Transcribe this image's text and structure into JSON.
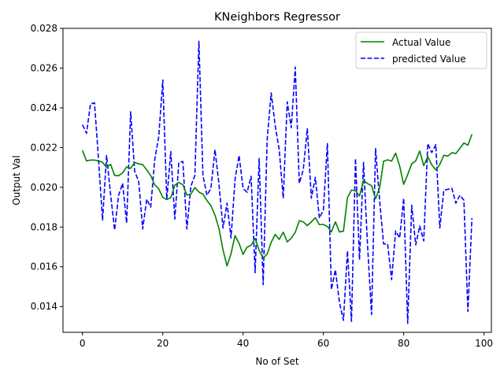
{
  "chart_data": {
    "type": "line",
    "title": "KNeighbors Regressor",
    "xlabel": "No of Set",
    "ylabel": "Output Val",
    "xlim": [
      -4.85,
      101.85
    ],
    "ylim": [
      0.0127,
      0.028
    ],
    "xticks": [
      0,
      20,
      40,
      60,
      80,
      100
    ],
    "yticks": [
      0.014,
      0.016,
      0.018,
      0.02,
      0.022,
      0.024,
      0.026,
      0.028
    ],
    "xtick_labels": [
      "0",
      "20",
      "40",
      "60",
      "80",
      "100"
    ],
    "ytick_labels": [
      "0.014",
      "0.016",
      "0.018",
      "0.020",
      "0.022",
      "0.024",
      "0.026",
      "0.028"
    ],
    "legend_position": "top-right",
    "grid": false,
    "series": [
      {
        "name": "Actual Value",
        "color": "#008000",
        "style": "solid",
        "values": [
          0.02185,
          0.02133,
          0.02137,
          0.02137,
          0.02133,
          0.02125,
          0.021,
          0.02116,
          0.0206,
          0.02058,
          0.02073,
          0.02103,
          0.02095,
          0.02125,
          0.02118,
          0.02114,
          0.02088,
          0.02059,
          0.02012,
          0.01992,
          0.01949,
          0.01938,
          0.01948,
          0.0201,
          0.02025,
          0.02013,
          0.01961,
          0.01966,
          0.01999,
          0.01976,
          0.01966,
          0.01933,
          0.01907,
          0.0186,
          0.01793,
          0.01685,
          0.01604,
          0.01666,
          0.01757,
          0.01718,
          0.01662,
          0.01699,
          0.01708,
          0.01743,
          0.01683,
          0.01643,
          0.01664,
          0.01723,
          0.01763,
          0.01738,
          0.01774,
          0.01725,
          0.01744,
          0.01773,
          0.01832,
          0.01826,
          0.01807,
          0.01826,
          0.01847,
          0.01812,
          0.01813,
          0.01803,
          0.01776,
          0.01826,
          0.01775,
          0.01779,
          0.01948,
          0.01986,
          0.01983,
          0.01956,
          0.02034,
          0.02019,
          0.02008,
          0.01942,
          0.01996,
          0.02131,
          0.02138,
          0.02132,
          0.02172,
          0.02107,
          0.02015,
          0.02064,
          0.02118,
          0.02133,
          0.02183,
          0.02109,
          0.02155,
          0.02113,
          0.02088,
          0.02115,
          0.02161,
          0.02157,
          0.02174,
          0.0217,
          0.02196,
          0.02223,
          0.02212,
          0.02267
        ]
      },
      {
        "name": "predicted Value",
        "color": "#0000ff",
        "style": "dashed",
        "values": [
          0.02315,
          0.02272,
          0.0242,
          0.02425,
          0.0214,
          0.01835,
          0.0216,
          0.01965,
          0.01785,
          0.0196,
          0.0202,
          0.0182,
          0.0238,
          0.0208,
          0.0203,
          0.0179,
          0.0194,
          0.019,
          0.0214,
          0.02255,
          0.0254,
          0.0194,
          0.0218,
          0.0184,
          0.02125,
          0.0213,
          0.0179,
          0.02005,
          0.0206,
          0.02735,
          0.0206,
          0.0196,
          0.01995,
          0.0219,
          0.02015,
          0.01795,
          0.0192,
          0.01745,
          0.0204,
          0.0216,
          0.01995,
          0.01975,
          0.02055,
          0.0157,
          0.02145,
          0.0151,
          0.0224,
          0.02475,
          0.0231,
          0.0219,
          0.01945,
          0.0243,
          0.023,
          0.02605,
          0.0202,
          0.0209,
          0.02295,
          0.01945,
          0.0205,
          0.01845,
          0.01885,
          0.0222,
          0.01485,
          0.01585,
          0.0142,
          0.0133,
          0.0168,
          0.01325,
          0.02145,
          0.01635,
          0.02125,
          0.0171,
          0.0136,
          0.02195,
          0.01935,
          0.01715,
          0.01715,
          0.01535,
          0.0178,
          0.01745,
          0.01945,
          0.01315,
          0.0191,
          0.0171,
          0.01805,
          0.0173,
          0.0222,
          0.02175,
          0.02215,
          0.01795,
          0.01985,
          0.0199,
          0.01995,
          0.0192,
          0.0196,
          0.01935,
          0.01375,
          0.01845
        ]
      }
    ]
  }
}
